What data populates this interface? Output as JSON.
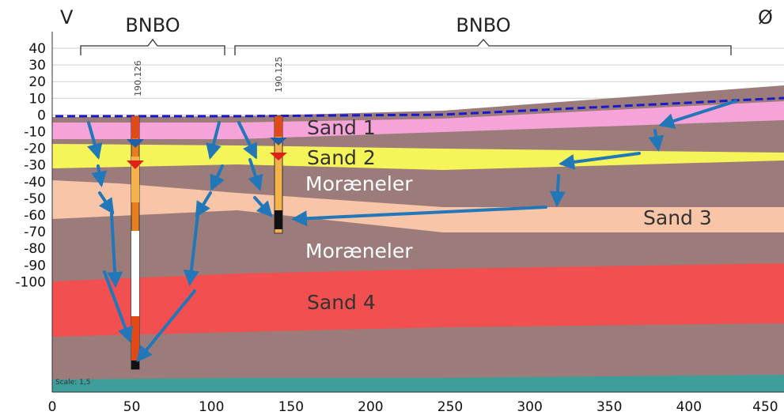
{
  "header": {
    "west": "V",
    "east": "Ø",
    "bnbo_left": "BNBO",
    "bnbo_right": "BNBO"
  },
  "boreholes": [
    {
      "id": "190.126",
      "x": 52
    },
    {
      "id": "190.125",
      "x": 142
    }
  ],
  "layer_labels": {
    "sand1": "Sand 1",
    "sand2": "Sand 2",
    "moraeneler_upper": "Moræneler",
    "sand3": "Sand 3",
    "moraeneler_lower": "Moræneler",
    "sand4": "Sand 4"
  },
  "scale_label": "Scale: 1,5",
  "y_axis": {
    "ticks": [
      "40",
      "30",
      "20",
      "10",
      "0",
      "-10",
      "-20",
      "-30",
      "-40",
      "-50",
      "-60",
      "-70",
      "-80",
      "-90",
      "-100"
    ]
  },
  "x_axis": {
    "ticks": [
      "0",
      "50",
      "100",
      "150",
      "200",
      "250",
      "300",
      "350",
      "400",
      "450"
    ]
  },
  "colors": {
    "clay": "#9c7b7b",
    "sand1": "#f5a3d8",
    "sand2": "#f5f55a",
    "sand3": "#f9c5a8",
    "sand4": "#f25050",
    "base": "#3f9e9a",
    "water_table": "#1a1acc",
    "flow_arrow": "#2277b8"
  }
}
